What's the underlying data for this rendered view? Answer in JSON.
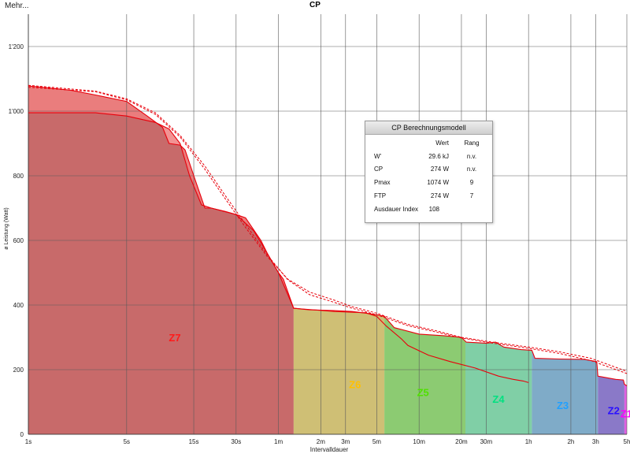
{
  "header": {
    "menu_label": "Mehr...",
    "title": "CP"
  },
  "colors": {
    "grid": "#5a5a5a",
    "curve": "#e8000b",
    "zones": [
      "#c86a6a",
      "#cfbf75",
      "#8ccb72",
      "#80cfa6",
      "#7fabc8",
      "#8a79c8",
      "#e060e0"
    ]
  },
  "info_panel": {
    "title": "CP Berechnungsmodell",
    "col_value": "Wert",
    "col_rank": "Rang",
    "rows": [
      {
        "label": "W'",
        "value": "29.6 kJ",
        "rank": "n.v."
      },
      {
        "label": "CP",
        "value": "274 W",
        "rank": "n.v."
      },
      {
        "label": "Pmax",
        "value": "1074 W",
        "rank": "9"
      },
      {
        "label": "FTP",
        "value": "274 W",
        "rank": "7"
      },
      {
        "label": "Ausdauer Index",
        "value": "108",
        "rank": ""
      }
    ]
  },
  "chart_data": {
    "type": "area",
    "xlabel": "Intervalldauer",
    "ylabel": "ø Leistung (Watt)",
    "x_scale": "log",
    "x_unit": "seconds",
    "xlim": [
      1,
      18000
    ],
    "ylim": [
      0,
      1300
    ],
    "grid": true,
    "x_ticks": [
      {
        "v": 1,
        "label": "1s"
      },
      {
        "v": 5,
        "label": "5s"
      },
      {
        "v": 15,
        "label": "15s"
      },
      {
        "v": 30,
        "label": "30s"
      },
      {
        "v": 60,
        "label": "1m"
      },
      {
        "v": 120,
        "label": "2m"
      },
      {
        "v": 180,
        "label": "3m"
      },
      {
        "v": 300,
        "label": "5m"
      },
      {
        "v": 600,
        "label": "10m"
      },
      {
        "v": 1200,
        "label": "20m"
      },
      {
        "v": 1800,
        "label": "30m"
      },
      {
        "v": 3600,
        "label": "1h"
      },
      {
        "v": 7200,
        "label": "2h"
      },
      {
        "v": 10800,
        "label": "3h"
      },
      {
        "v": 18000,
        "label": "5h"
      }
    ],
    "y_ticks": [
      {
        "v": 0,
        "label": "0"
      },
      {
        "v": 200,
        "label": "200"
      },
      {
        "v": 400,
        "label": "400"
      },
      {
        "v": 600,
        "label": "600"
      },
      {
        "v": 800,
        "label": "800"
      },
      {
        "v": 1000,
        "label": "1'000"
      },
      {
        "v": 1200,
        "label": "1'200"
      }
    ],
    "zones": [
      {
        "name": "Z7",
        "from": 1,
        "to": 77,
        "label_x": 11,
        "label_y": 300
      },
      {
        "name": "Z6",
        "from": 77,
        "to": 340,
        "label_x": 210,
        "label_y": 155
      },
      {
        "name": "Z5",
        "from": 340,
        "to": 1280,
        "label_x": 640,
        "label_y": 130
      },
      {
        "name": "Z4",
        "from": 1280,
        "to": 3800,
        "label_x": 2200,
        "label_y": 110
      },
      {
        "name": "Z3",
        "from": 3800,
        "to": 11200,
        "label_x": 6300,
        "label_y": 90
      },
      {
        "name": "Z2",
        "from": 11200,
        "to": 17300,
        "label_x": 14500,
        "label_y": 75
      },
      {
        "name": "Z1",
        "from": 17300,
        "to": 18000,
        "label_x": 17850,
        "label_y": 65
      }
    ],
    "series": [
      {
        "key": "best",
        "style": "solid-filled",
        "points": [
          [
            1,
            1078
          ],
          [
            2,
            1065
          ],
          [
            3,
            1050
          ],
          [
            5,
            1030
          ],
          [
            7,
            985
          ],
          [
            9,
            950
          ],
          [
            10,
            900
          ],
          [
            12,
            895
          ],
          [
            13,
            880
          ],
          [
            15,
            800
          ],
          [
            18,
            700
          ],
          [
            20,
            700
          ],
          [
            25,
            690
          ],
          [
            30,
            680
          ],
          [
            35,
            670
          ],
          [
            45,
            600
          ],
          [
            50,
            560
          ],
          [
            60,
            500
          ],
          [
            65,
            480
          ],
          [
            77,
            390
          ],
          [
            100,
            385
          ],
          [
            150,
            383
          ],
          [
            200,
            380
          ],
          [
            250,
            375
          ],
          [
            300,
            370
          ],
          [
            340,
            365
          ],
          [
            400,
            330
          ],
          [
            600,
            310
          ],
          [
            900,
            305
          ],
          [
            1200,
            300
          ],
          [
            1300,
            285
          ],
          [
            1800,
            282
          ],
          [
            2100,
            285
          ],
          [
            2400,
            270
          ],
          [
            3200,
            262
          ],
          [
            3800,
            260
          ],
          [
            4000,
            235
          ],
          [
            6000,
            233
          ],
          [
            9000,
            232
          ],
          [
            11000,
            225
          ],
          [
            11200,
            180
          ],
          [
            13000,
            175
          ],
          [
            15000,
            170
          ],
          [
            17000,
            168
          ],
          [
            17300,
            155
          ],
          [
            18000,
            150
          ]
        ]
      },
      {
        "key": "current",
        "style": "solid",
        "points": [
          [
            1,
            995
          ],
          [
            3,
            995
          ],
          [
            5,
            985
          ],
          [
            8,
            965
          ],
          [
            10,
            945
          ],
          [
            12,
            900
          ],
          [
            14,
            800
          ],
          [
            17,
            710
          ],
          [
            20,
            700
          ],
          [
            30,
            680
          ],
          [
            40,
            630
          ],
          [
            50,
            560
          ],
          [
            60,
            500
          ],
          [
            77,
            390
          ],
          [
            150,
            380
          ],
          [
            250,
            376
          ],
          [
            300,
            365
          ],
          [
            350,
            335
          ],
          [
            450,
            295
          ],
          [
            500,
            275
          ],
          [
            700,
            245
          ],
          [
            1000,
            225
          ],
          [
            1500,
            205
          ],
          [
            2200,
            180
          ],
          [
            2800,
            170
          ],
          [
            3300,
            165
          ],
          [
            3600,
            160
          ]
        ]
      },
      {
        "key": "model",
        "style": "dashed",
        "points": [
          [
            1,
            1074
          ],
          [
            3,
            1060
          ],
          [
            5,
            1035
          ],
          [
            8,
            990
          ],
          [
            12,
            920
          ],
          [
            18,
            820
          ],
          [
            25,
            730
          ],
          [
            35,
            640
          ],
          [
            50,
            550
          ],
          [
            70,
            480
          ],
          [
            100,
            440
          ],
          [
            150,
            415
          ],
          [
            200,
            395
          ],
          [
            300,
            375
          ],
          [
            500,
            340
          ],
          [
            800,
            320
          ],
          [
            1200,
            300
          ],
          [
            2000,
            285
          ],
          [
            3600,
            270
          ],
          [
            6000,
            255
          ],
          [
            10000,
            235
          ],
          [
            18000,
            195
          ]
        ]
      },
      {
        "key": "model2",
        "style": "dashed",
        "points": [
          [
            1,
            1080
          ],
          [
            3,
            1062
          ],
          [
            5,
            1038
          ],
          [
            8,
            995
          ],
          [
            12,
            925
          ],
          [
            18,
            830
          ],
          [
            25,
            740
          ],
          [
            35,
            650
          ],
          [
            50,
            555
          ],
          [
            70,
            478
          ],
          [
            100,
            432
          ],
          [
            150,
            408
          ],
          [
            200,
            390
          ],
          [
            300,
            370
          ],
          [
            500,
            336
          ],
          [
            800,
            316
          ],
          [
            1200,
            298
          ],
          [
            2000,
            282
          ],
          [
            3600,
            266
          ],
          [
            6000,
            250
          ],
          [
            10000,
            228
          ],
          [
            18000,
            188
          ]
        ]
      }
    ]
  }
}
